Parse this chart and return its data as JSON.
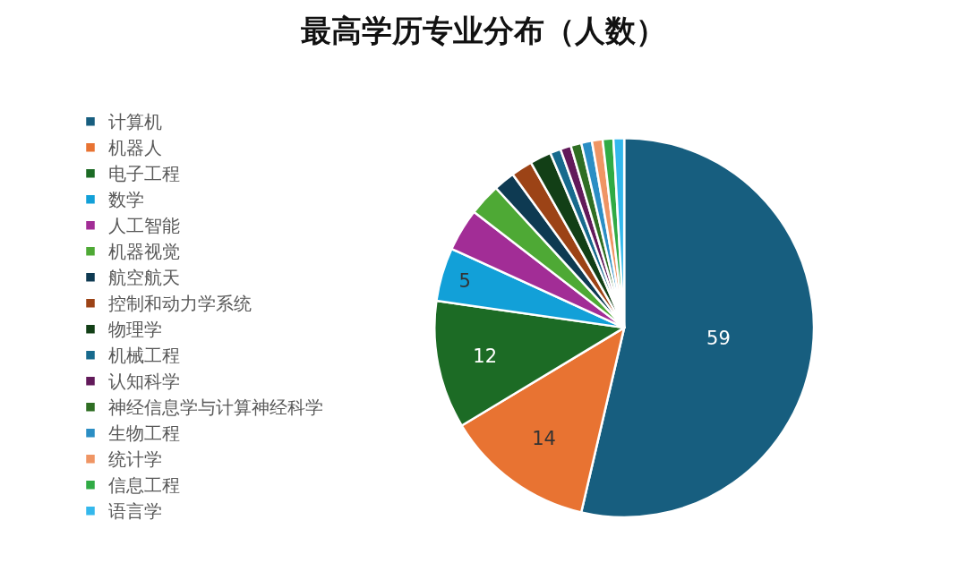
{
  "chart_data": {
    "type": "pie",
    "title": "最高学历专业分布（人数）",
    "categories": [
      "计算机",
      "机器人",
      "电子工程",
      "数学",
      "人工智能",
      "机器视觉",
      "航空航天",
      "控制和动力学系统",
      "物理学",
      "机械工程",
      "认知科学",
      "神经信息学与计算神经科学",
      "生物工程",
      "统计学",
      "信息工程",
      "语言学"
    ],
    "values": [
      59,
      14,
      12,
      5,
      4,
      3,
      2,
      2,
      2,
      1,
      1,
      1,
      1,
      1,
      1,
      1
    ],
    "colors": [
      "#175e7f",
      "#e87332",
      "#1c6b25",
      "#12a0d8",
      "#a22d96",
      "#4ea935",
      "#0e3a52",
      "#9c4316",
      "#123f16",
      "#176a8d",
      "#621a5a",
      "#2f6e23",
      "#2b8ec4",
      "#ef9564",
      "#30ab45",
      "#34b8ec"
    ],
    "value_labels": [
      "59",
      "14",
      "12",
      "5",
      null,
      null,
      null,
      null,
      null,
      null,
      null,
      null,
      null,
      null,
      null,
      null
    ],
    "legend": "left"
  }
}
